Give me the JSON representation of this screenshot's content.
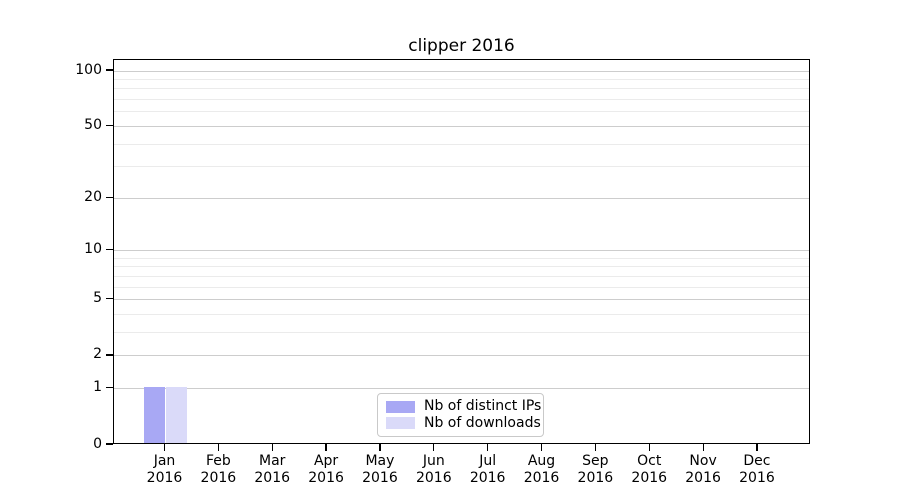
{
  "chart_data": {
    "type": "bar",
    "title": "clipper 2016",
    "months": [
      "Jan",
      "Feb",
      "Mar",
      "Apr",
      "May",
      "Jun",
      "Jul",
      "Aug",
      "Sep",
      "Oct",
      "Nov",
      "Dec"
    ],
    "year": "2016",
    "series": [
      {
        "name": "Nb of distinct IPs",
        "color": "#a8a8f4",
        "values": [
          1,
          0,
          0,
          0,
          0,
          0,
          0,
          0,
          0,
          0,
          0,
          0
        ]
      },
      {
        "name": "Nb of downloads",
        "color": "#dadaf9",
        "values": [
          1,
          0,
          0,
          0,
          0,
          0,
          0,
          0,
          0,
          0,
          0,
          0
        ]
      }
    ],
    "y_axis": {
      "scale": "log10(value+1)",
      "tick_values": [
        0,
        1,
        2,
        5,
        10,
        20,
        50,
        100
      ],
      "minor_grid_values": [
        3,
        4,
        6,
        7,
        8,
        9,
        30,
        40,
        60,
        70,
        80,
        90
      ],
      "top_value": 115
    },
    "grid": "horizontal",
    "legend_position": "lower-center"
  },
  "colors": {
    "major_grid": "#cdcdcd",
    "minor_grid": "#ebebeb",
    "spine": "#000000",
    "legend_border": "#c9c9c9",
    "text": "#000000",
    "background": "#ffffff"
  }
}
